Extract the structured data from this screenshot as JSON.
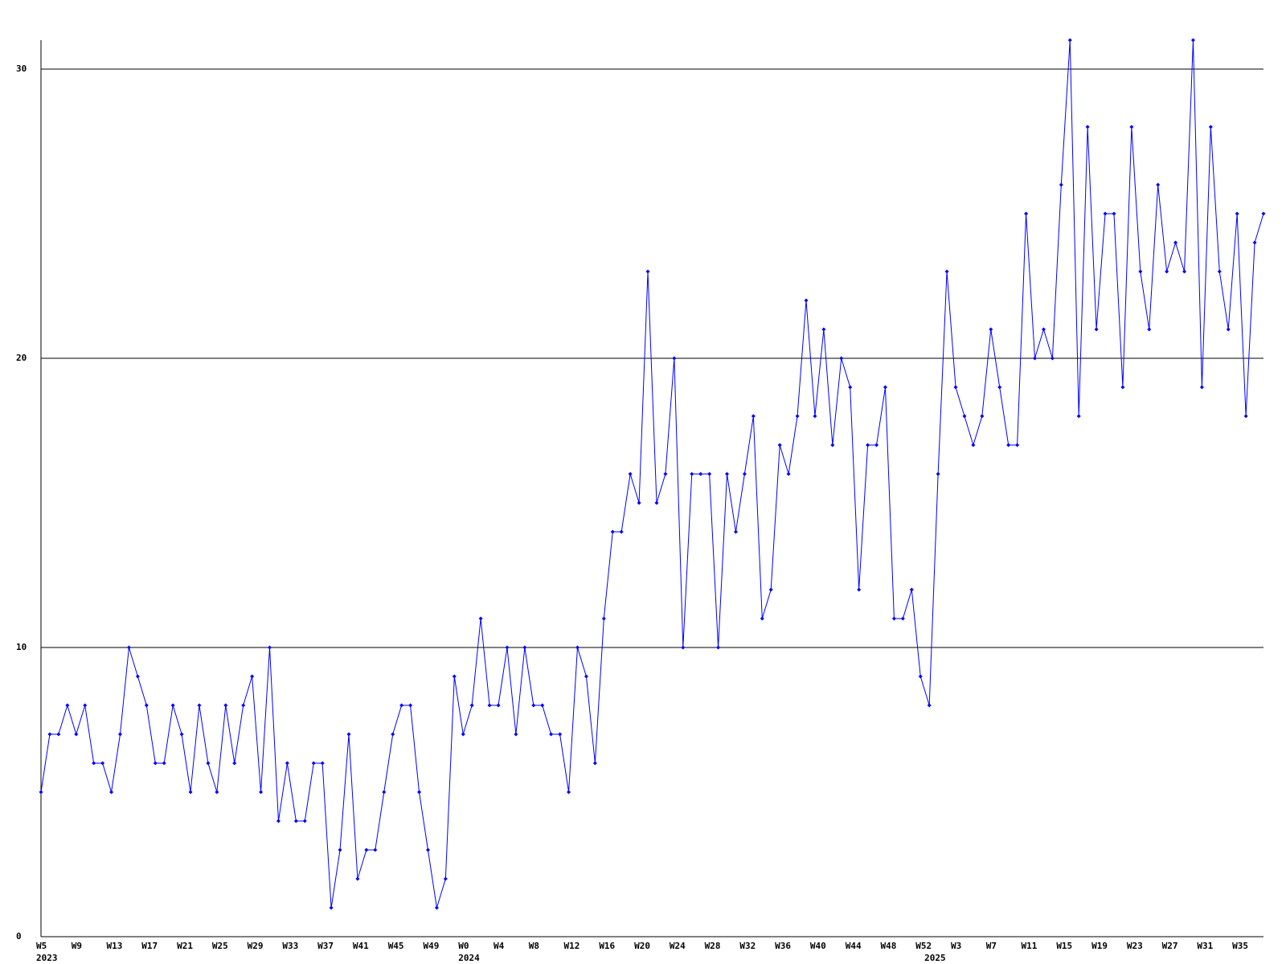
{
  "chart_data": {
    "type": "line",
    "categories": [
      "W5",
      null,
      null,
      null,
      "W9",
      null,
      null,
      null,
      "W13",
      null,
      null,
      null,
      "W17",
      null,
      null,
      null,
      "W21",
      null,
      null,
      null,
      "W25",
      null,
      null,
      null,
      "W29",
      null,
      null,
      null,
      "W33",
      null,
      null,
      null,
      "W37",
      null,
      null,
      null,
      "W41",
      null,
      null,
      null,
      "W45",
      null,
      null,
      null,
      "W49",
      null,
      null,
      null,
      "W0",
      null,
      null,
      null,
      "W4",
      null,
      null,
      null,
      "W8",
      null,
      null,
      null,
      "W12",
      null,
      null,
      null,
      "W16",
      null,
      null,
      null,
      "W20",
      null,
      null,
      null,
      "W24",
      null,
      null,
      null,
      "W28",
      null,
      null,
      null,
      "W32",
      null,
      null,
      null,
      "W36",
      null,
      null,
      null,
      "W40",
      null,
      null,
      null,
      "W44",
      null,
      null,
      null,
      "W48",
      null,
      null,
      null,
      "W52",
      null,
      null,
      null,
      "W3",
      null,
      null,
      null,
      "W7",
      null,
      null,
      null,
      "W11",
      null,
      null,
      null,
      "W15",
      null,
      null,
      null,
      "W19",
      null,
      null,
      null,
      "W23",
      null,
      null,
      null,
      "W27",
      null,
      null,
      null,
      "W31",
      null,
      null,
      null,
      "W35",
      null,
      null,
      null
    ],
    "years": [
      "2023",
      null,
      null,
      null,
      null,
      null,
      null,
      null,
      null,
      null,
      null,
      null,
      null,
      null,
      null,
      null,
      null,
      null,
      null,
      null,
      null,
      null,
      null,
      null,
      null,
      null,
      null,
      null,
      null,
      null,
      null,
      null,
      null,
      null,
      null,
      null,
      null,
      null,
      null,
      null,
      null,
      null,
      null,
      null,
      null,
      null,
      null,
      null,
      "2024",
      null,
      null,
      null,
      null,
      null,
      null,
      null,
      null,
      null,
      null,
      null,
      null,
      null,
      null,
      null,
      null,
      null,
      null,
      null,
      null,
      null,
      null,
      null,
      null,
      null,
      null,
      null,
      null,
      null,
      null,
      null,
      null,
      null,
      null,
      null,
      null,
      null,
      null,
      null,
      null,
      null,
      null,
      null,
      null,
      null,
      null,
      null,
      null,
      null,
      null,
      null,
      null,
      "2025",
      null,
      null,
      null,
      null,
      null,
      null,
      null,
      null,
      null,
      null,
      null,
      null,
      null,
      null,
      null,
      null,
      null,
      null,
      null,
      null,
      null,
      null,
      null,
      null,
      null,
      null,
      null,
      null,
      null,
      null,
      null,
      null,
      null,
      null,
      null,
      null,
      null,
      null
    ],
    "series": [
      {
        "color": "#0000ff",
        "values": [
          5,
          7,
          7,
          8,
          7,
          8,
          6,
          6,
          5,
          7,
          10,
          9,
          8,
          6,
          6,
          8,
          7,
          5,
          8,
          6,
          5,
          8,
          6,
          8,
          9,
          5,
          10,
          4,
          6,
          4,
          4,
          6,
          6,
          1,
          3,
          7,
          2,
          3,
          3,
          5,
          7,
          8,
          8,
          5,
          3,
          1,
          2,
          9,
          7,
          8,
          11,
          8,
          8,
          10,
          7,
          10,
          8,
          8,
          7,
          7,
          5,
          10,
          9,
          6,
          11,
          14,
          14,
          16,
          15,
          23,
          15,
          16,
          20,
          10,
          16,
          16,
          16,
          10,
          16,
          14,
          16,
          18,
          11,
          12,
          17,
          16,
          18,
          22,
          18,
          21,
          17,
          20,
          19,
          12,
          17,
          17,
          19,
          11,
          11,
          12,
          9,
          8,
          16,
          23,
          19,
          18,
          17,
          18,
          21,
          19,
          17,
          17,
          25,
          20,
          21,
          20,
          26,
          31,
          18,
          28,
          21,
          25,
          25,
          19,
          28,
          23,
          21,
          26,
          23,
          24,
          23,
          31,
          19,
          28,
          23,
          21,
          25,
          18,
          24,
          25
        ]
      }
    ],
    "ylim": [
      0,
      31
    ],
    "yticks": [
      0,
      10,
      20,
      30
    ],
    "grid": true
  }
}
